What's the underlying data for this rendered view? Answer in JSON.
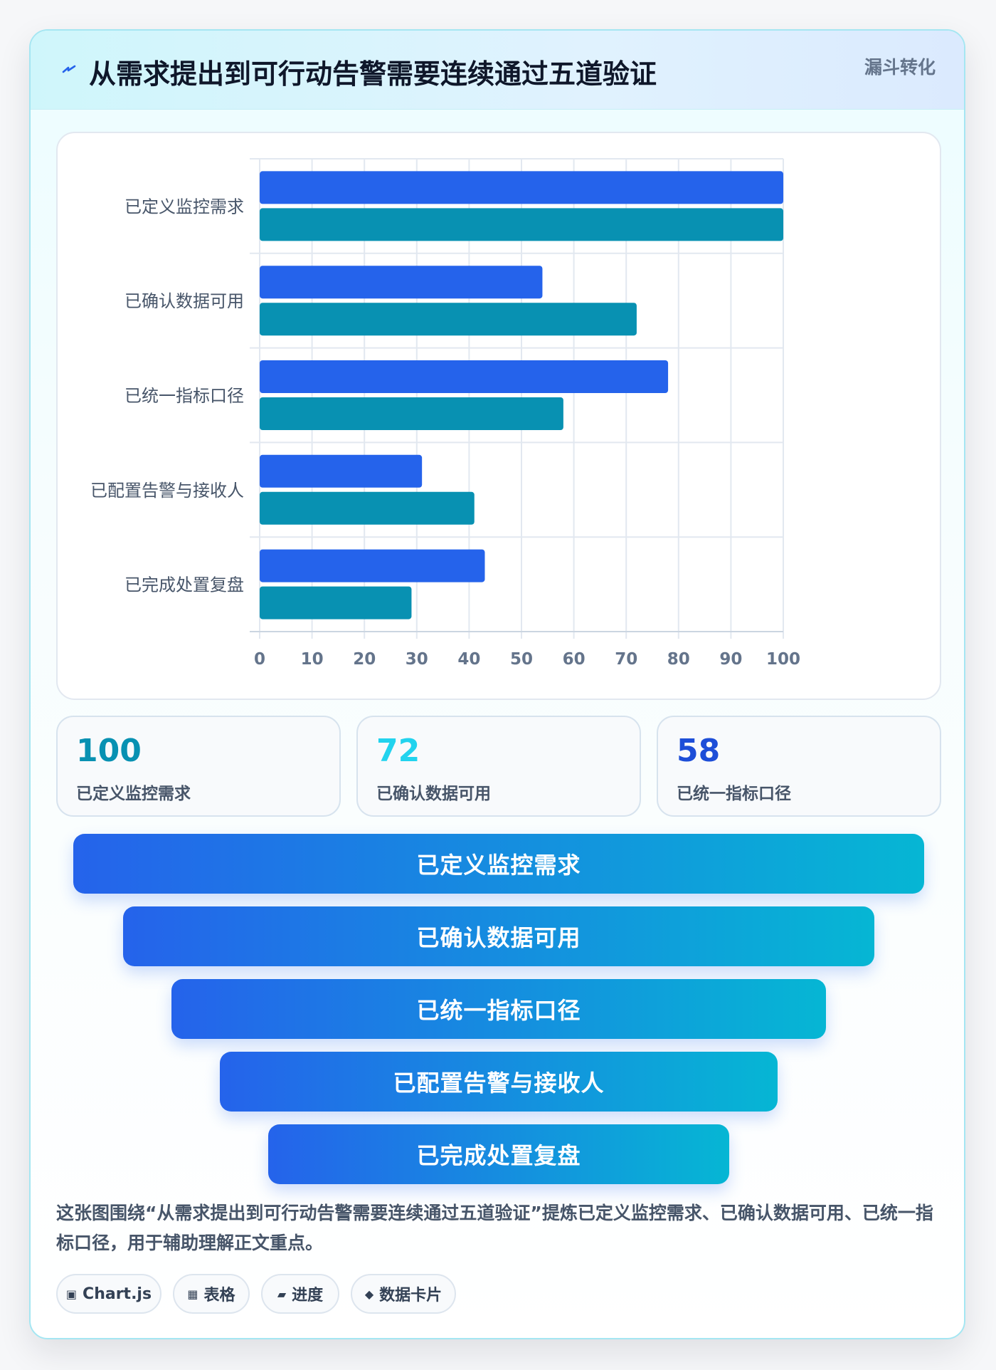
{
  "header": {
    "icon": "bolt-icon",
    "title": "从需求提出到可行动告警需要连续通过五道验证",
    "badge": "漏斗转化"
  },
  "chart_data": {
    "type": "bar",
    "orientation": "horizontal",
    "categories": [
      "已定义监控需求",
      "已确认数据可用",
      "已统一指标口径",
      "已配置告警与接收人",
      "已完成处置复盘"
    ],
    "series": [
      {
        "values": [
          100,
          54,
          78,
          31,
          43
        ],
        "color": "#2563eb"
      },
      {
        "values": [
          100,
          72,
          58,
          41,
          29
        ],
        "color": "#0891b2"
      }
    ],
    "xlim": [
      0,
      100
    ],
    "xticks": [
      0,
      10,
      20,
      30,
      40,
      50,
      60,
      70,
      80,
      90,
      100
    ],
    "grid": true,
    "legend": "none"
  },
  "stats": [
    {
      "value": "100",
      "label": "已定义监控需求",
      "color": "#0891b2"
    },
    {
      "value": "72",
      "label": "已确认数据可用",
      "color": "#22d3ee"
    },
    {
      "value": "58",
      "label": "已统一指标口径",
      "color": "#1d4ed8"
    }
  ],
  "funnel": {
    "stages": [
      "已定义监控需求",
      "已确认数据可用",
      "已统一指标口径",
      "已配置告警与接收人",
      "已完成处置复盘"
    ],
    "colors": {
      "start": "#2563eb",
      "end": "#06b6d4"
    }
  },
  "description": "这张图围绕“从需求提出到可行动告警需要连续通过五道验证”提炼已定义监控需求、已确认数据可用、已统一指标口径，用于辅助理解正文重点。",
  "tags": [
    {
      "icon": "▣",
      "label": "Chart.js"
    },
    {
      "icon": "▦",
      "label": "表格"
    },
    {
      "icon": "▰",
      "label": "进度"
    },
    {
      "icon": "◆",
      "label": "数据卡片"
    }
  ]
}
